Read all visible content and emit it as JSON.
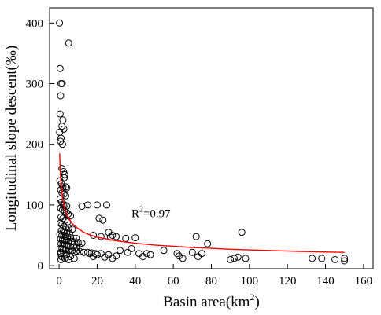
{
  "chart_data": {
    "type": "scatter",
    "title": "",
    "xlabel_text": "Basin area(km",
    "xlabel_sup": "2",
    "xlabel_close": ")",
    "ylabel": "Longitudinal slope descent(‰)",
    "xlim": [
      -5,
      165
    ],
    "ylim": [
      -5,
      425
    ],
    "xticks": [
      0,
      20,
      40,
      60,
      80,
      100,
      120,
      140,
      160
    ],
    "yticks": [
      0,
      100,
      200,
      300,
      400
    ],
    "grid": false,
    "legend": "none",
    "annotation": {
      "text_prefix": "R",
      "text_sup": "2",
      "text_suffix": "=0.97",
      "x": 38,
      "y": 80
    },
    "marker_color": "#000000",
    "fit_color": "#ff0000",
    "fit": {
      "points": [
        [
          0.3,
          185
        ],
        [
          0.6,
          158
        ],
        [
          1,
          138
        ],
        [
          1.5,
          120
        ],
        [
          2,
          108
        ],
        [
          3,
          93
        ],
        [
          4,
          84
        ],
        [
          5,
          78
        ],
        [
          7,
          69
        ],
        [
          10,
          61
        ],
        [
          13,
          55
        ],
        [
          16,
          51
        ],
        [
          20,
          47
        ],
        [
          25,
          44
        ],
        [
          30,
          41
        ],
        [
          40,
          37
        ],
        [
          50,
          34
        ],
        [
          60,
          32
        ],
        [
          70,
          30
        ],
        [
          80,
          28.5
        ],
        [
          90,
          27
        ],
        [
          100,
          26
        ],
        [
          110,
          25
        ],
        [
          120,
          24
        ],
        [
          130,
          23.2
        ],
        [
          140,
          22.5
        ],
        [
          150,
          22
        ]
      ]
    },
    "series": [
      {
        "points": [
          [
            0.2,
            400
          ],
          [
            5,
            367
          ],
          [
            0.5,
            325
          ],
          [
            1,
            300
          ],
          [
            1.6,
            300
          ],
          [
            0.8,
            280
          ],
          [
            0.5,
            250
          ],
          [
            2,
            240
          ],
          [
            1.5,
            230
          ],
          [
            2.5,
            225
          ],
          [
            0.3,
            220
          ],
          [
            1,
            210
          ],
          [
            1.8,
            200
          ],
          [
            0.7,
            205
          ],
          [
            1.5,
            160
          ],
          [
            2.3,
            155
          ],
          [
            3,
            150
          ],
          [
            2.7,
            145
          ],
          [
            0.4,
            140
          ],
          [
            1.2,
            135
          ],
          [
            2,
            130
          ],
          [
            3.5,
            130
          ],
          [
            4,
            128
          ],
          [
            0.8,
            125
          ],
          [
            1.5,
            120
          ],
          [
            2.5,
            118
          ],
          [
            3.5,
            115
          ],
          [
            0.5,
            110
          ],
          [
            1.3,
            105
          ],
          [
            2.2,
            100
          ],
          [
            3,
            100
          ],
          [
            4,
            98
          ],
          [
            0.8,
            95
          ],
          [
            1.8,
            92
          ],
          [
            2.8,
            90
          ],
          [
            3.8,
            88
          ],
          [
            4.8,
            85
          ],
          [
            6,
            82
          ],
          [
            1,
            80
          ],
          [
            2,
            78
          ],
          [
            3.2,
            75
          ],
          [
            4.5,
            72
          ],
          [
            0.6,
            70
          ],
          [
            1.5,
            68
          ],
          [
            2.5,
            65
          ],
          [
            3.5,
            63
          ],
          [
            5,
            62
          ],
          [
            7,
            60
          ],
          [
            1.2,
            58
          ],
          [
            2.2,
            56
          ],
          [
            3,
            55
          ],
          [
            4,
            54
          ],
          [
            5.5,
            53
          ],
          [
            0.4,
            52
          ],
          [
            1.5,
            50
          ],
          [
            2.5,
            50
          ],
          [
            3.5,
            48
          ],
          [
            4.5,
            47
          ],
          [
            6,
            46
          ],
          [
            7.5,
            45
          ],
          [
            9,
            45
          ],
          [
            0.8,
            44
          ],
          [
            1.8,
            43
          ],
          [
            2.8,
            42
          ],
          [
            3.8,
            41
          ],
          [
            5,
            40
          ],
          [
            6.5,
            40
          ],
          [
            8,
            39
          ],
          [
            10,
            38
          ],
          [
            12,
            37
          ],
          [
            1,
            36
          ],
          [
            2,
            35
          ],
          [
            3,
            35
          ],
          [
            4,
            34
          ],
          [
            5,
            33
          ],
          [
            6,
            32
          ],
          [
            7.5,
            31
          ],
          [
            9,
            30
          ],
          [
            11,
            30
          ],
          [
            0.5,
            28
          ],
          [
            1.5,
            28
          ],
          [
            2.5,
            27
          ],
          [
            3.5,
            26
          ],
          [
            5,
            25
          ],
          [
            7,
            25
          ],
          [
            9,
            24
          ],
          [
            11,
            23
          ],
          [
            13,
            22
          ],
          [
            15,
            22
          ],
          [
            17,
            21
          ],
          [
            19,
            20
          ],
          [
            1,
            22
          ],
          [
            2.5,
            20
          ],
          [
            4,
            18
          ],
          [
            6,
            15
          ],
          [
            8,
            12
          ],
          [
            1.2,
            15
          ],
          [
            3,
            12
          ],
          [
            5,
            10
          ],
          [
            0.8,
            20
          ],
          [
            2,
            25
          ],
          [
            1,
            10
          ],
          [
            15,
            100
          ],
          [
            20,
            100
          ],
          [
            25,
            100
          ],
          [
            12,
            98
          ],
          [
            21,
            78
          ],
          [
            23,
            75
          ],
          [
            26,
            55
          ],
          [
            28,
            50
          ],
          [
            30,
            48
          ],
          [
            35,
            45
          ],
          [
            40,
            46
          ],
          [
            18,
            50
          ],
          [
            22,
            48
          ],
          [
            27,
            47
          ],
          [
            32,
            25
          ],
          [
            36,
            22
          ],
          [
            38,
            28
          ],
          [
            42,
            20
          ],
          [
            44,
            15
          ],
          [
            46,
            20
          ],
          [
            48,
            18
          ],
          [
            16,
            20
          ],
          [
            18,
            15
          ],
          [
            20,
            18
          ],
          [
            22,
            20
          ],
          [
            24,
            14
          ],
          [
            26,
            18
          ],
          [
            28,
            12
          ],
          [
            30,
            16
          ],
          [
            55,
            25
          ],
          [
            62,
            20
          ],
          [
            63,
            16
          ],
          [
            65,
            12
          ],
          [
            70,
            22
          ],
          [
            72,
            48
          ],
          [
            73,
            15
          ],
          [
            75,
            20
          ],
          [
            78,
            36
          ],
          [
            90,
            10
          ],
          [
            92,
            12
          ],
          [
            94,
            14
          ],
          [
            96,
            55
          ],
          [
            98,
            12
          ],
          [
            133,
            12
          ],
          [
            138,
            12
          ],
          [
            145,
            10
          ],
          [
            150,
            12
          ],
          [
            150,
            8
          ]
        ]
      }
    ]
  }
}
